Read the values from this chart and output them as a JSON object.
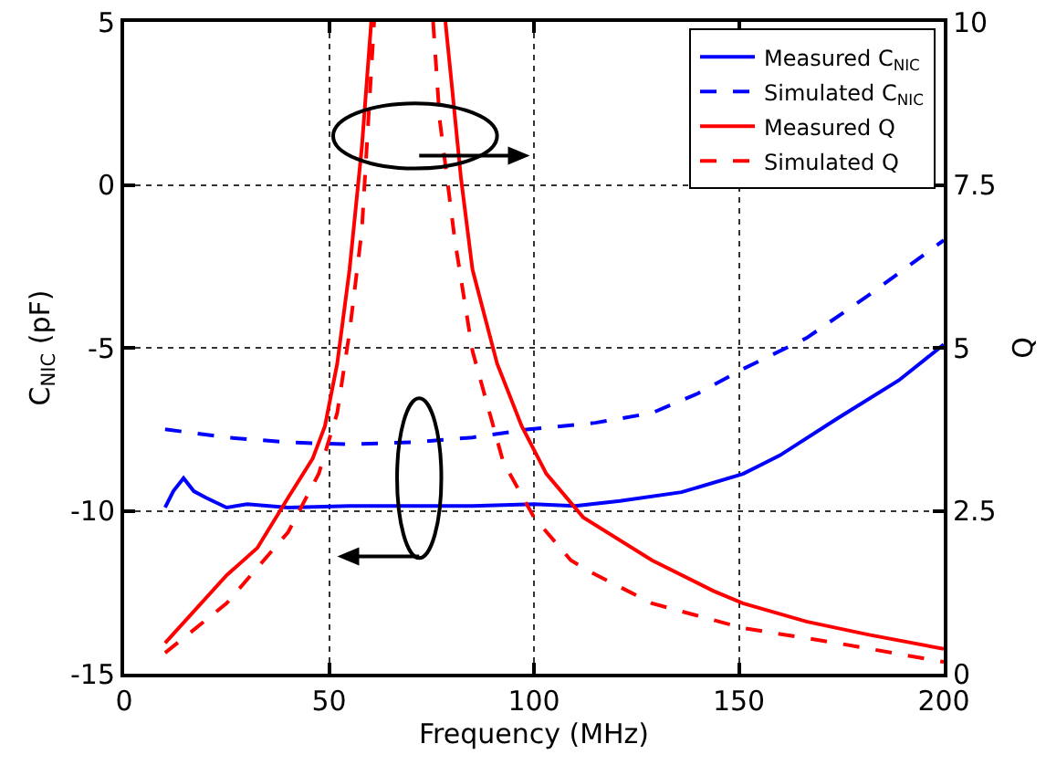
{
  "chart_data": {
    "type": "line",
    "xlabel": "Frequency (MHz)",
    "ylabel": "C$_{NIC}$ (pF)",
    "y2label": "Q",
    "xlim": [
      0,
      200
    ],
    "xticks": [
      0,
      50,
      100,
      150,
      200
    ],
    "ylim": [
      -15,
      5
    ],
    "yticks": [
      -15,
      -10,
      -5,
      0,
      5
    ],
    "y2lim": [
      0,
      10
    ],
    "y2ticks": [
      0,
      2.5,
      5,
      7.5,
      10
    ],
    "grid": true,
    "legend": "top right",
    "marker": "none",
    "series": [
      {
        "name": "Measured C$_{NIC}$",
        "color": "#0000ff",
        "line_style": "solid",
        "x": [
          10,
          12,
          14.5,
          17,
          20,
          25,
          30,
          40,
          55,
          70,
          85,
          100,
          110,
          121,
          136,
          151,
          160,
          174,
          189,
          200
        ],
        "values": [
          -9.9,
          -9.4,
          -9.0,
          -9.4,
          -9.6,
          -9.9,
          -9.8,
          -9.9,
          -9.85,
          -9.85,
          -9.85,
          -9.8,
          -9.85,
          -9.7,
          -9.43,
          -8.87,
          -8.3,
          -7.17,
          -6.0,
          -4.9
        ]
      },
      {
        "name": "Simulated C$_{NIC}$",
        "color": "#0000ff",
        "line_style": "dashed",
        "x": [
          10,
          25,
          40,
          55,
          70,
          85,
          98.7,
          115,
          128.8,
          140,
          151,
          166.5,
          181.5,
          200
        ],
        "values": [
          -7.5,
          -7.75,
          -7.9,
          -7.96,
          -7.9,
          -7.75,
          -7.5,
          -7.3,
          -7.0,
          -6.4,
          -5.65,
          -4.7,
          -3.4,
          -1.7
        ]
      },
      {
        "name": "Measured Q",
        "color": "#ff0000",
        "line_style": "solid",
        "axis": "y2",
        "x": [
          10,
          25,
          32.5,
          40,
          46,
          49,
          52,
          55,
          58,
          60.3,
          70,
          78.4,
          80,
          82.2,
          85,
          91,
          97,
          103,
          112,
          128.8,
          143.8,
          151,
          166.5,
          181.5,
          200
        ],
        "values": [
          0.47,
          1.51,
          1.93,
          2.7,
          3.3,
          3.8,
          4.76,
          6.2,
          8.07,
          10,
          null,
          10,
          9.0,
          7.6,
          6.2,
          4.76,
          3.8,
          3.07,
          2.4,
          1.74,
          1.27,
          1.08,
          0.8,
          0.6,
          0.38
        ]
      },
      {
        "name": "Simulated Q",
        "color": "#ff0000",
        "line_style": "dashed",
        "axis": "y2",
        "x": [
          10,
          25,
          40,
          47.5,
          52,
          55,
          58,
          61,
          68,
          75.4,
          77,
          80.7,
          85,
          92.5,
          100,
          109,
          113.8,
          128.8,
          151,
          174,
          200
        ],
        "values": [
          0.32,
          1.08,
          2.17,
          3.07,
          4.0,
          5.24,
          6.8,
          10,
          null,
          10,
          8.5,
          6.65,
          4.95,
          3.25,
          2.4,
          1.74,
          1.56,
          1.08,
          0.7,
          0.47,
          0.18
        ]
      }
    ]
  }
}
